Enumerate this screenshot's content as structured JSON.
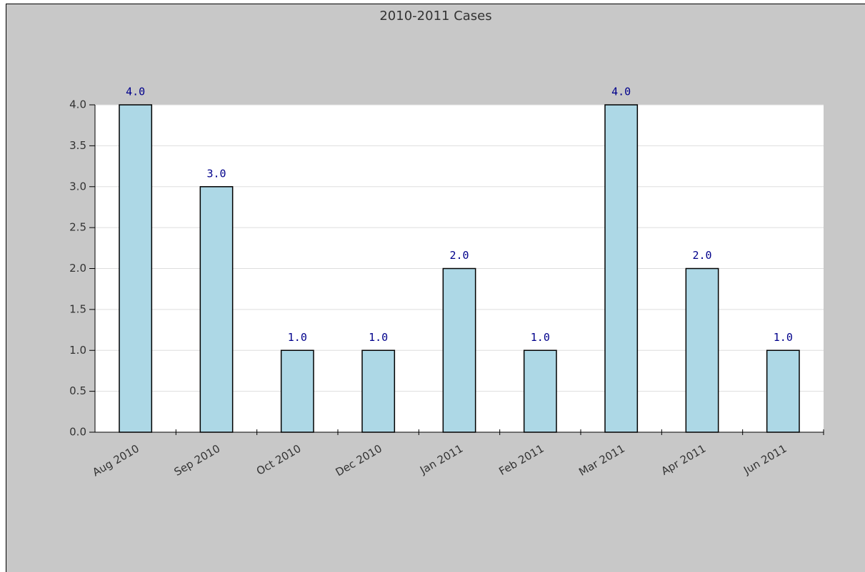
{
  "chart_data": {
    "type": "bar",
    "title": "2010-2011 Cases",
    "categories": [
      "Aug 2010",
      "Sep 2010",
      "Oct 2010",
      "Dec 2010",
      "Jan 2011",
      "Feb 2011",
      "Mar 2011",
      "Apr 2011",
      "Jun 2011"
    ],
    "values": [
      4,
      3,
      1,
      1,
      2,
      1,
      4,
      2,
      1
    ],
    "value_labels": [
      "4.0",
      "3.0",
      "1.0",
      "1.0",
      "2.0",
      "1.0",
      "4.0",
      "2.0",
      "1.0"
    ],
    "color": "#add8e6",
    "ylim": [
      0,
      4
    ],
    "yticks": [
      {
        "value": 0,
        "label": "0.0"
      },
      {
        "value": 0.5,
        "label": "0.5"
      },
      {
        "value": 1,
        "label": "1.0"
      },
      {
        "value": 1.5,
        "label": "1.5"
      },
      {
        "value": 2,
        "label": "2.0"
      },
      {
        "value": 2.5,
        "label": "2.5"
      },
      {
        "value": 3,
        "label": "3.0"
      },
      {
        "value": 3.5,
        "label": "3.5"
      },
      {
        "value": 4,
        "label": "4.0"
      }
    ],
    "grid": true
  }
}
